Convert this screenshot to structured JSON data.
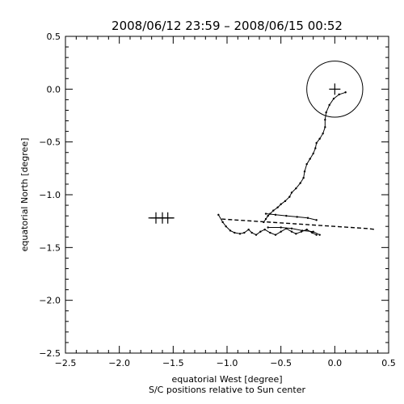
{
  "chart_data": {
    "type": "scatter",
    "title": "2008/06/12 23:59 – 2008/06/15 00:52",
    "xlabel": "equatorial West [degree]",
    "xlabel2": "S/C positions relative to Sun center",
    "ylabel": "equatorial North [degree]",
    "xlim": [
      -2.5,
      0.5
    ],
    "ylim": [
      -2.5,
      0.5
    ],
    "xticks": [
      {
        "value": -2.5,
        "label": "−2.5"
      },
      {
        "value": -2.0,
        "label": "−2.0"
      },
      {
        "value": -1.5,
        "label": "−1.5"
      },
      {
        "value": -1.0,
        "label": "−1.0"
      },
      {
        "value": -0.5,
        "label": "−0.5"
      },
      {
        "value": 0.0,
        "label": "0.0"
      },
      {
        "value": 0.5,
        "label": "0.5"
      }
    ],
    "yticks": [
      {
        "value": 0.5,
        "label": "0.5"
      },
      {
        "value": 0.0,
        "label": "0.0"
      },
      {
        "value": -0.5,
        "label": "−0.5"
      },
      {
        "value": -1.0,
        "label": "−1.0"
      },
      {
        "value": -1.5,
        "label": "−1.5"
      },
      {
        "value": -2.0,
        "label": "−2.0"
      },
      {
        "value": -2.5,
        "label": "−2.5"
      }
    ],
    "sun": {
      "x": 0.0,
      "y": 0.0,
      "radius": 0.26
    },
    "markers": [
      {
        "x": 0.0,
        "y": 0.0
      },
      {
        "x": -1.66,
        "y": -1.22
      },
      {
        "x": -1.6,
        "y": -1.22
      },
      {
        "x": -1.55,
        "y": -1.22
      }
    ],
    "marker_line": {
      "x": [
        -1.73,
        -1.49
      ],
      "y": -1.22
    },
    "track_descent": {
      "x": [
        0.1,
        0.04,
        -0.01,
        -0.05,
        -0.08,
        -0.09,
        -0.09,
        -0.11,
        -0.14,
        -0.17,
        -0.18,
        -0.2,
        -0.23,
        -0.26,
        -0.28,
        -0.29,
        -0.32,
        -0.36,
        -0.4,
        -0.42,
        -0.46,
        -0.5,
        -0.53,
        -0.57,
        -0.6,
        -0.62,
        -0.64,
        -0.66
      ],
      "y": [
        -0.03,
        -0.05,
        -0.09,
        -0.15,
        -0.22,
        -0.29,
        -0.36,
        -0.42,
        -0.47,
        -0.51,
        -0.56,
        -0.61,
        -0.66,
        -0.71,
        -0.78,
        -0.84,
        -0.89,
        -0.94,
        -0.98,
        -1.02,
        -1.06,
        -1.09,
        -1.12,
        -1.15,
        -1.18,
        -1.2,
        -1.23,
        -1.26
      ]
    },
    "track_loops": {
      "x": [
        -1.08,
        -1.04,
        -1.01,
        -0.97,
        -0.93,
        -0.88,
        -0.84,
        -0.8,
        -0.77,
        -0.73,
        -0.69,
        -0.65,
        -0.6,
        -0.55,
        -0.5,
        -0.45,
        -0.4,
        -0.36,
        -0.31,
        -0.26,
        -0.21,
        -0.17
      ],
      "y": [
        -1.19,
        -1.26,
        -1.3,
        -1.34,
        -1.36,
        -1.37,
        -1.36,
        -1.33,
        -1.36,
        -1.38,
        -1.35,
        -1.33,
        -1.36,
        -1.38,
        -1.35,
        -1.32,
        -1.35,
        -1.37,
        -1.35,
        -1.33,
        -1.36,
        -1.38
      ]
    },
    "track_dashed": {
      "x": [
        -1.05,
        -0.9,
        -0.75,
        -0.6,
        -0.45,
        -0.3,
        -0.15,
        0.0,
        0.15,
        0.3,
        0.38
      ],
      "y": [
        -1.23,
        -1.24,
        -1.25,
        -1.26,
        -1.27,
        -1.28,
        -1.29,
        -1.3,
        -1.31,
        -1.32,
        -1.33
      ]
    },
    "track_return": {
      "x": [
        -0.64,
        -0.55,
        -0.45,
        -0.35,
        -0.25,
        -0.17,
        -0.62,
        -0.5,
        -0.4,
        -0.3,
        -0.2,
        -0.14
      ],
      "y": [
        -1.18,
        -1.19,
        -1.2,
        -1.21,
        -1.22,
        -1.24,
        -1.31,
        -1.31,
        -1.32,
        -1.34,
        -1.35,
        -1.38
      ]
    }
  }
}
